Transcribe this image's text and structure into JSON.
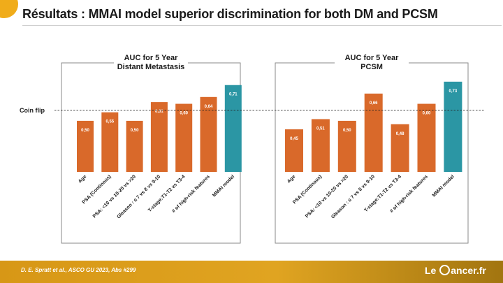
{
  "slide": {
    "title": "Résultats : MMAI model superior discrimination for both DM and PCSM",
    "reference_label": "Coin flip",
    "citation": "D. E. Spratt et al.,  ASCO GU 2023, Abs #299",
    "logo_text_before": "Le ",
    "logo_text_after": "ancer.fr"
  },
  "colors": {
    "bar": "#d9692a",
    "highlight_bar": "#2b96a4",
    "accent": "#f0ac1a",
    "footer": "#e0a421"
  },
  "chart_data": [
    {
      "type": "bar",
      "title_lines": [
        "AUC for 5 Year",
        "Distant Metastasis"
      ],
      "categories": [
        "Age",
        "PSA (Continous)",
        "PSA: <10 vs 10-20 vs >20",
        "Gleason : ≤ 7 vs 8 vs 9-10",
        "T-stage:T1-T2 vs T3-4",
        "# of high-risk features",
        "MMAI model"
      ],
      "values": [
        0.5,
        0.55,
        0.5,
        0.61,
        0.6,
        0.64,
        0.71
      ],
      "value_labels": [
        "0,50",
        "0,55",
        "0,50",
        "0,61",
        "0,60",
        "0,64",
        "0,71"
      ],
      "highlight_index": 6,
      "reference_line": 0.5,
      "ylim": [
        0.2,
        0.75
      ],
      "grid": false
    },
    {
      "type": "bar",
      "title_lines": [
        "AUC for 5 Year",
        "PCSM"
      ],
      "categories": [
        "Age",
        "PSA (Continous)",
        "PSA: <10 vs 10-20 vs >20",
        "Gleason : ≤ 7 vs 8 vs 9-10",
        "T-stage:T1-T2 vs T3-4",
        "# of high-risk features",
        "MMAI model"
      ],
      "values": [
        0.45,
        0.51,
        0.5,
        0.66,
        0.48,
        0.6,
        0.73
      ],
      "value_labels": [
        "0,45",
        "0,51",
        "0,50",
        "0,66",
        "0,48",
        "0,60",
        "0,73"
      ],
      "highlight_index": 6,
      "reference_line": 0.5,
      "ylim": [
        0.2,
        0.75
      ],
      "grid": false
    }
  ]
}
